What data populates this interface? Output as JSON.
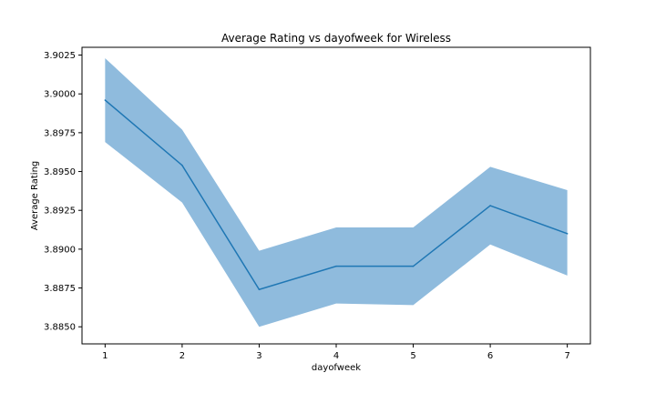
{
  "chart_data": {
    "type": "line",
    "title": "Average Rating vs dayofweek for Wireless",
    "xlabel": "dayofweek",
    "ylabel": "Average Rating",
    "x": [
      1,
      2,
      3,
      4,
      5,
      6,
      7
    ],
    "xticks": [
      "1",
      "2",
      "3",
      "4",
      "5",
      "6",
      "7"
    ],
    "yticks": [
      "3.8850",
      "3.8875",
      "3.8900",
      "3.8925",
      "3.8950",
      "3.8975",
      "3.9000",
      "3.9025"
    ],
    "ylim": [
      3.8839,
      3.903
    ],
    "xlim": [
      0.7,
      7.3
    ],
    "grid": false,
    "series": [
      {
        "values": [
          3.8996,
          3.8954,
          3.8874,
          3.8889,
          3.8889,
          3.8928,
          3.891
        ],
        "band_upper": [
          3.9023,
          3.8977,
          3.8899,
          3.8914,
          3.8914,
          3.8953,
          3.8938
        ],
        "band_lower": [
          3.8969,
          3.893,
          3.885,
          3.8865,
          3.8864,
          3.8903,
          3.8883
        ],
        "color": "#1f77b4",
        "band_color": "#8fbbdd"
      }
    ]
  }
}
